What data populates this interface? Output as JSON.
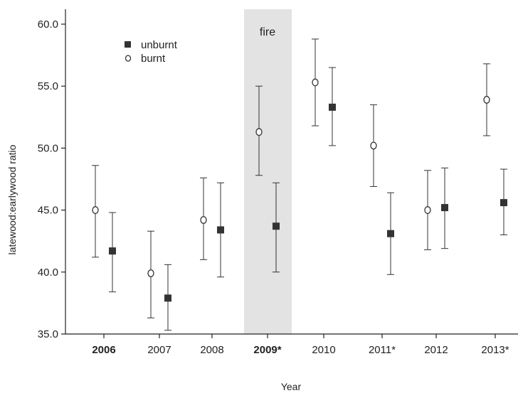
{
  "chart_data": {
    "type": "scatter",
    "title": "",
    "xlabel": "Year",
    "ylabel": "latewood:earlywood ratio",
    "categories": [
      "2006",
      "2007",
      "2008",
      "2009*",
      "2010",
      "2011*",
      "2012",
      "2013*"
    ],
    "bold_categories": [
      "2006",
      "2009*"
    ],
    "ylim": [
      35.0,
      60.0
    ],
    "yticks": [
      35.0,
      40.0,
      45.0,
      50.0,
      55.0,
      60.0
    ],
    "ytick_labels": [
      "35.0",
      "40.0",
      "45.0",
      "50.0",
      "55.0",
      "60.0"
    ],
    "grid": false,
    "legend_position": "top-left",
    "shaded_category": "2009*",
    "shaded_label": "fire",
    "series": [
      {
        "name": "burnt",
        "marker": "open-circle",
        "values": [
          45.0,
          39.9,
          44.2,
          51.3,
          55.3,
          50.2,
          45.0,
          53.9
        ],
        "lower": [
          41.2,
          36.3,
          41.0,
          47.8,
          51.8,
          46.9,
          41.8,
          51.0
        ],
        "upper": [
          48.6,
          43.3,
          47.6,
          55.0,
          58.8,
          53.5,
          48.2,
          56.8
        ]
      },
      {
        "name": "unburnt",
        "marker": "filled-square",
        "values": [
          41.7,
          37.9,
          43.4,
          43.7,
          53.3,
          43.1,
          45.2,
          45.6
        ],
        "lower": [
          38.4,
          35.3,
          39.6,
          40.0,
          50.2,
          39.8,
          41.9,
          43.0
        ],
        "upper": [
          44.8,
          40.6,
          47.2,
          47.2,
          56.5,
          46.4,
          48.4,
          48.3
        ]
      }
    ],
    "colors": {
      "marker": "#333333",
      "axis": "#222222",
      "shade": "#e3e3e3"
    }
  }
}
